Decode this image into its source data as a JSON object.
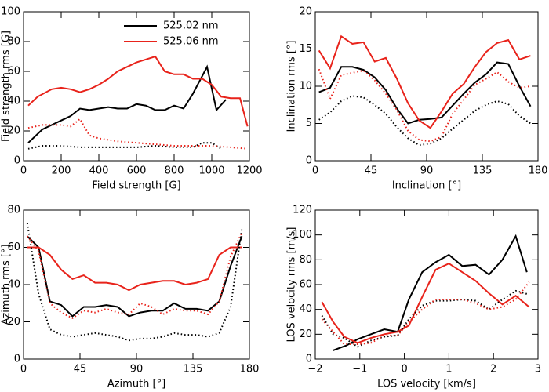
{
  "chart_data": [
    {
      "type": "line",
      "xlabel": "Field strength [G]",
      "ylabel": "Field strength rms [G]",
      "xlim": [
        0,
        1200
      ],
      "xticks": [
        0,
        200,
        400,
        600,
        800,
        1000,
        1200
      ],
      "ylim": [
        0,
        100
      ],
      "yticks": [
        0,
        20,
        40,
        60,
        80,
        100
      ],
      "legend": "upper right",
      "series": [
        {
          "name": "525.02 nm",
          "color": "#000000",
          "dash": "solid",
          "x": [
            25,
            100,
            150,
            200,
            250,
            300,
            350,
            400,
            450,
            500,
            550,
            600,
            650,
            700,
            750,
            800,
            850,
            900,
            975,
            1025,
            1075
          ],
          "values": [
            12,
            21,
            24,
            27,
            30,
            35,
            34,
            35,
            36,
            35,
            35,
            38,
            37,
            34,
            34,
            37,
            35,
            45,
            63,
            34,
            41
          ]
        },
        {
          "name": "525.06 nm",
          "color": "#e8231b",
          "dash": "solid",
          "x": [
            25,
            75,
            150,
            200,
            250,
            300,
            350,
            400,
            450,
            500,
            550,
            600,
            650,
            700,
            750,
            800,
            850,
            900,
            950,
            1000,
            1050,
            1100,
            1150,
            1190
          ],
          "values": [
            37,
            43,
            48,
            49,
            48,
            46,
            48,
            51,
            55,
            60,
            63,
            66,
            68,
            70,
            60,
            58,
            58,
            55,
            55,
            51,
            43,
            42,
            42,
            23
          ]
        },
        {
          "color": "#000000",
          "dash": "dotted",
          "x": [
            25,
            100,
            200,
            300,
            400,
            500,
            600,
            700,
            800,
            900,
            950,
            1000,
            1050
          ],
          "values": [
            8,
            10,
            10,
            9,
            9,
            9,
            9,
            10,
            9,
            9,
            12,
            12,
            8
          ]
        },
        {
          "color": "#e8231b",
          "dash": "dotted",
          "x": [
            25,
            100,
            200,
            250,
            300,
            350,
            400,
            500,
            600,
            700,
            800,
            900,
            1000,
            1100,
            1190
          ],
          "values": [
            22,
            24,
            24,
            23,
            28,
            17,
            15,
            13,
            12,
            11,
            10,
            10,
            10,
            9,
            8
          ]
        }
      ]
    },
    {
      "type": "line",
      "xlabel": "Inclination [°]",
      "ylabel": "Inclination rms [°]",
      "xlim": [
        0,
        180
      ],
      "xticks": [
        0,
        45,
        90,
        135,
        180
      ],
      "ylim": [
        0,
        20
      ],
      "yticks": [
        0,
        5,
        10,
        15,
        20
      ],
      "series": [
        {
          "color": "#000000",
          "dash": "solid",
          "x": [
            3,
            12,
            21,
            30,
            39,
            48,
            57,
            66,
            75,
            84,
            93,
            102,
            111,
            120,
            129,
            138,
            147,
            156,
            165,
            174
          ],
          "values": [
            9.2,
            9.8,
            12.6,
            12.6,
            12.2,
            11.2,
            9.5,
            7,
            5,
            5.5,
            5.6,
            5.8,
            7.4,
            9,
            10.5,
            11.6,
            13.2,
            13,
            10,
            7.3
          ]
        },
        {
          "color": "#e8231b",
          "dash": "solid",
          "x": [
            3,
            12,
            21,
            30,
            39,
            48,
            57,
            66,
            75,
            84,
            93,
            102,
            111,
            120,
            129,
            138,
            147,
            156,
            165,
            174
          ],
          "values": [
            14.8,
            12.4,
            16.7,
            15.7,
            15.9,
            13.3,
            13.8,
            11,
            7.7,
            5.4,
            4.4,
            6.6,
            9,
            10.3,
            12.6,
            14.6,
            15.8,
            16.2,
            13.6,
            14.1
          ]
        },
        {
          "color": "#000000",
          "dash": "dotted",
          "x": [
            3,
            12,
            21,
            30,
            39,
            48,
            57,
            66,
            75,
            84,
            93,
            102,
            111,
            120,
            129,
            138,
            147,
            156,
            165,
            174
          ],
          "values": [
            5.5,
            6.5,
            8,
            8.7,
            8.5,
            7.5,
            6.3,
            4.5,
            3,
            2.1,
            2.3,
            3,
            4.3,
            5.5,
            6.7,
            7.5,
            8,
            7.6,
            6,
            5
          ]
        },
        {
          "color": "#e8231b",
          "dash": "dotted",
          "x": [
            3,
            12,
            21,
            30,
            39,
            48,
            57,
            66,
            75,
            84,
            93,
            102,
            111,
            120,
            129,
            138,
            147,
            156,
            165,
            174
          ],
          "values": [
            12.3,
            8.3,
            11.5,
            11.8,
            12.1,
            10.8,
            9,
            6.8,
            4,
            2.8,
            2.6,
            3.2,
            6.3,
            8.2,
            10.2,
            11,
            11.9,
            10.6,
            9.8,
            10
          ]
        }
      ]
    },
    {
      "type": "line",
      "xlabel": "Azimuth [°]",
      "ylabel": "Azimuth rms [°]",
      "xlim": [
        0,
        180
      ],
      "xticks": [
        0,
        45,
        90,
        135,
        180
      ],
      "ylim": [
        0,
        80
      ],
      "yticks": [
        0,
        20,
        40,
        60,
        80
      ],
      "series": [
        {
          "color": "#000000",
          "dash": "solid",
          "x": [
            3,
            12,
            21,
            30,
            39,
            48,
            57,
            66,
            75,
            84,
            93,
            102,
            111,
            120,
            129,
            138,
            147,
            156,
            165,
            174
          ],
          "values": [
            66,
            60,
            31,
            29,
            23,
            28,
            28,
            29,
            28,
            23,
            25,
            26,
            26,
            30,
            27,
            27,
            26,
            31,
            50,
            66
          ]
        },
        {
          "color": "#e8231b",
          "dash": "solid",
          "x": [
            3,
            12,
            21,
            30,
            39,
            48,
            57,
            66,
            75,
            84,
            93,
            102,
            111,
            120,
            129,
            138,
            147,
            156,
            165,
            174
          ],
          "values": [
            60,
            60,
            56,
            48,
            43,
            45,
            41,
            41,
            40,
            37,
            40,
            41,
            42,
            42,
            40,
            41,
            43,
            56,
            60,
            60
          ]
        },
        {
          "color": "#000000",
          "dash": "dotted",
          "x": [
            3,
            12,
            21,
            30,
            39,
            48,
            57,
            66,
            75,
            84,
            93,
            102,
            111,
            120,
            129,
            138,
            147,
            156,
            165,
            174
          ],
          "values": [
            73,
            35,
            16,
            13,
            12,
            13,
            14,
            13,
            12,
            10,
            11,
            11,
            12,
            14,
            13,
            13,
            12,
            14,
            28,
            70
          ]
        },
        {
          "color": "#e8231b",
          "dash": "dotted",
          "x": [
            3,
            12,
            21,
            30,
            39,
            48,
            57,
            66,
            75,
            84,
            93,
            102,
            111,
            120,
            129,
            138,
            147,
            156,
            165,
            174
          ],
          "values": [
            66,
            58,
            30,
            25,
            22,
            26,
            25,
            27,
            25,
            24,
            30,
            28,
            24,
            27,
            26,
            26,
            24,
            31,
            55,
            68
          ]
        }
      ]
    },
    {
      "type": "line",
      "xlabel": "LOS velocity [km/s]",
      "ylabel": "LOS velocity rms [m/s]",
      "xlim": [
        -2,
        3
      ],
      "xticks": [
        {
          "value": -2,
          "label": "−2"
        },
        {
          "value": -1,
          "label": "−1"
        },
        0,
        1,
        2,
        3
      ],
      "ylim": [
        0,
        120
      ],
      "yticks": [
        0,
        20,
        40,
        60,
        80,
        100,
        120
      ],
      "series": [
        {
          "color": "#000000",
          "dash": "solid",
          "x": [
            -1.6,
            -1.3,
            -1.05,
            -0.75,
            -0.45,
            -0.15,
            0.1,
            0.4,
            0.7,
            1.0,
            1.3,
            1.6,
            1.9,
            2.2,
            2.5,
            2.75
          ],
          "values": [
            7,
            11,
            16,
            20,
            24,
            22,
            48,
            70,
            78,
            84,
            75,
            76,
            68,
            80,
            99,
            70
          ]
        },
        {
          "color": "#e8231b",
          "dash": "solid",
          "x": [
            -1.85,
            -1.6,
            -1.35,
            -1.05,
            -0.75,
            -0.45,
            -0.15,
            0.1,
            0.4,
            0.7,
            1.0,
            1.3,
            1.6,
            1.9,
            2.2,
            2.5,
            2.8
          ],
          "values": [
            46,
            30,
            18,
            13,
            17,
            20,
            22,
            27,
            50,
            72,
            77,
            70,
            63,
            53,
            44,
            51,
            42
          ]
        },
        {
          "color": "#000000",
          "dash": "dotted",
          "x": [
            -1.85,
            -1.6,
            -1.35,
            -1.05,
            -0.75,
            -0.45,
            -0.15,
            0.1,
            0.4,
            0.7,
            1.0,
            1.3,
            1.6,
            1.9,
            2.2,
            2.5,
            2.8
          ],
          "values": [
            35,
            20,
            17,
            10,
            15,
            18,
            19,
            32,
            43,
            47,
            47,
            48,
            47,
            40,
            48,
            55,
            52
          ]
        },
        {
          "color": "#e8231b",
          "dash": "dotted",
          "x": [
            -1.85,
            -1.6,
            -1.35,
            -1.05,
            -0.75,
            -0.45,
            -0.15,
            0.1,
            0.4,
            0.7,
            1.0,
            1.3,
            1.6,
            1.9,
            2.2,
            2.5,
            2.8
          ],
          "values": [
            32,
            22,
            12,
            12,
            13,
            19,
            19,
            30,
            40,
            48,
            48,
            48,
            45,
            40,
            42,
            48,
            62
          ]
        }
      ]
    }
  ]
}
